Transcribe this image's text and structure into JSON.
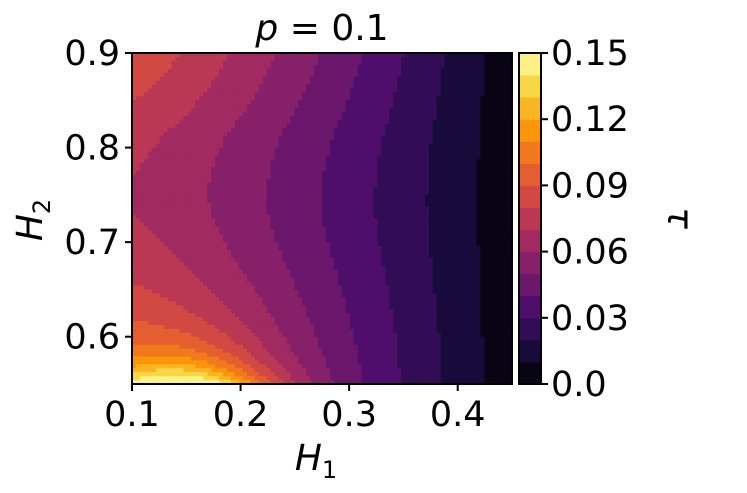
{
  "chart_data": {
    "type": "heatmap",
    "subtype": "filled-contour",
    "title": "p = 0.1",
    "title_parts": {
      "var": "p",
      "rest": " = 0.1"
    },
    "xlabel": "H_1",
    "xlabel_parts": {
      "base": "H",
      "sub": "1"
    },
    "ylabel": "H_2",
    "ylabel_parts": {
      "base": "H",
      "sub": "2"
    },
    "colorbar_label": "τ",
    "xlim": [
      0.1,
      0.45
    ],
    "ylim": [
      0.55,
      0.9
    ],
    "x_ticks": [
      "0.1",
      "0.2",
      "0.3",
      "0.4"
    ],
    "x_tick_values": [
      0.1,
      0.2,
      0.3,
      0.4
    ],
    "y_ticks": [
      "0.6",
      "0.7",
      "0.8",
      "0.9"
    ],
    "y_tick_values": [
      0.6,
      0.7,
      0.8,
      0.9
    ],
    "colorbar_ticks": [
      "0.0",
      "0.03",
      "0.06",
      "0.09",
      "0.12",
      "0.15"
    ],
    "colorbar_tick_values": [
      0.0,
      0.03,
      0.06,
      0.09,
      0.12,
      0.15
    ],
    "color_range": [
      0.0,
      0.15
    ],
    "colormap": "inferno",
    "contour_levels": [
      0.0,
      0.01,
      0.02,
      0.03,
      0.04,
      0.05,
      0.06,
      0.07,
      0.08,
      0.09,
      0.1,
      0.11,
      0.12,
      0.13,
      0.14,
      0.15
    ],
    "grid": false,
    "description_values": {
      "min_region_tau": 0.005,
      "max_region_tau": 0.15,
      "max_location": {
        "x": 0.15,
        "y": 0.55
      },
      "min_location": {
        "x": 0.43,
        "y": 0.62
      }
    }
  },
  "colors": {
    "colormap_stops": [
      "#000004",
      "#1b0c41",
      "#4a0c6b",
      "#781c6d",
      "#a52c60",
      "#cf4446",
      "#ed6925",
      "#fb9b06",
      "#f7d13d",
      "#fcffa4"
    ]
  }
}
